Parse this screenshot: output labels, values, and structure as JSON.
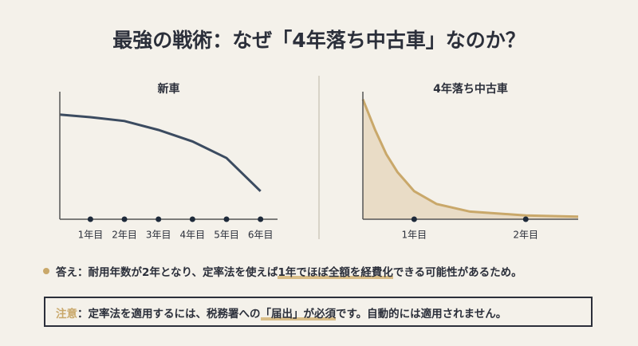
{
  "title": "最強の戦術：なぜ「4年落ち中古車」なのか？",
  "chart_data": [
    {
      "type": "line",
      "title": "新車",
      "color": "#3b4b60",
      "x": [
        0.1,
        1,
        2,
        3,
        4,
        5,
        6
      ],
      "values": [
        82,
        80,
        77,
        70,
        61,
        48,
        22
      ],
      "xlim": [
        0.1,
        6.5
      ],
      "ylim": [
        0,
        100
      ],
      "xticks": [
        {
          "value": 1,
          "label": "1年目"
        },
        {
          "value": 2,
          "label": "2年目"
        },
        {
          "value": 3,
          "label": "3年目"
        },
        {
          "value": 4,
          "label": "4年目"
        },
        {
          "value": 5,
          "label": "5年目"
        },
        {
          "value": 6,
          "label": "6年目"
        }
      ]
    },
    {
      "type": "area",
      "title": "4年落ち中古車",
      "color": "#c9a86a",
      "x": [
        0.54,
        0.65,
        0.75,
        0.85,
        1.0,
        1.2,
        1.5,
        2.0,
        2.47
      ],
      "values": [
        94,
        70,
        51,
        37,
        22,
        12,
        6,
        3,
        2
      ],
      "xlim": [
        0.54,
        2.47
      ],
      "ylim": [
        0,
        100
      ],
      "xticks": [
        {
          "value": 1,
          "label": "1年目"
        },
        {
          "value": 2,
          "label": "2年目"
        }
      ]
    }
  ],
  "answer": [
    "答え：耐用年数が2年となり、定率法を使えば",
    "1年でほぼ全額を経費化",
    "できる可能性があるため。"
  ],
  "note": [
    "注意",
    "：定率法を適用するには、税務署への",
    "「届出」が必須",
    "です。自動的には適用されません。"
  ]
}
